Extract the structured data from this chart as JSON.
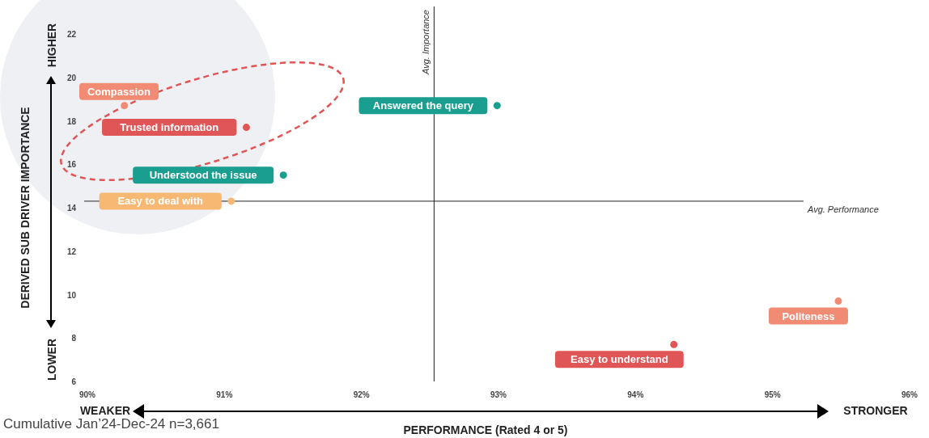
{
  "chart_data": {
    "type": "scatter",
    "xlabel": "PERFORMANCE (Rated 4 or 5)",
    "ylabel": "DERIVED SUB DRIVER IMPORTANCE",
    "xlim": [
      90,
      96
    ],
    "xticks": [
      {
        "value": 90,
        "label": "90%"
      },
      {
        "value": 91,
        "label": "91%"
      },
      {
        "value": 92,
        "label": "92%"
      },
      {
        "value": 93,
        "label": "93%"
      },
      {
        "value": 94,
        "label": "94%"
      },
      {
        "value": 95,
        "label": "95%"
      },
      {
        "value": 96,
        "label": "96%"
      }
    ],
    "ylim": [
      6,
      22
    ],
    "yticks": [
      6,
      8,
      10,
      12,
      14,
      16,
      18,
      20,
      22
    ],
    "grid": false,
    "legend": false,
    "marker": "circle",
    "series": [
      {
        "name": "Compassion",
        "color": "#f28b74",
        "x": [
          90.27
        ],
        "values": [
          18.7
        ]
      },
      {
        "name": "Trusted information",
        "color": "#e05555",
        "x": [
          91.16
        ],
        "values": [
          17.7
        ]
      },
      {
        "name": "Understood the issue",
        "color": "#1a9e8f",
        "x": [
          91.43
        ],
        "values": [
          15.5
        ]
      },
      {
        "name": "Easy to deal with",
        "color": "#f7b874",
        "x": [
          91.05
        ],
        "values": [
          14.3
        ]
      },
      {
        "name": "Answered the query",
        "color": "#1a9e8f",
        "x": [
          92.99
        ],
        "values": [
          18.7
        ]
      },
      {
        "name": "Politeness",
        "color": "#f28b74",
        "x": [
          95.48
        ],
        "values": [
          9.7
        ]
      },
      {
        "name": "Easy to understand",
        "color": "#e05555",
        "x": [
          94.28
        ],
        "values": [
          7.7
        ]
      }
    ],
    "ref_lines": [
      {
        "axis": "x",
        "value": 92.53,
        "label": "Avg. Importance",
        "color": "#222222"
      },
      {
        "axis": "y",
        "value": 14.3,
        "label": "Avg. Performance",
        "color": "#222222"
      }
    ],
    "annotations": [
      "HIGHER",
      "LOWER",
      "WEAKER",
      "STRONGER",
      "Cumulative Jan’24-Dec-24 n=3,661"
    ]
  }
}
